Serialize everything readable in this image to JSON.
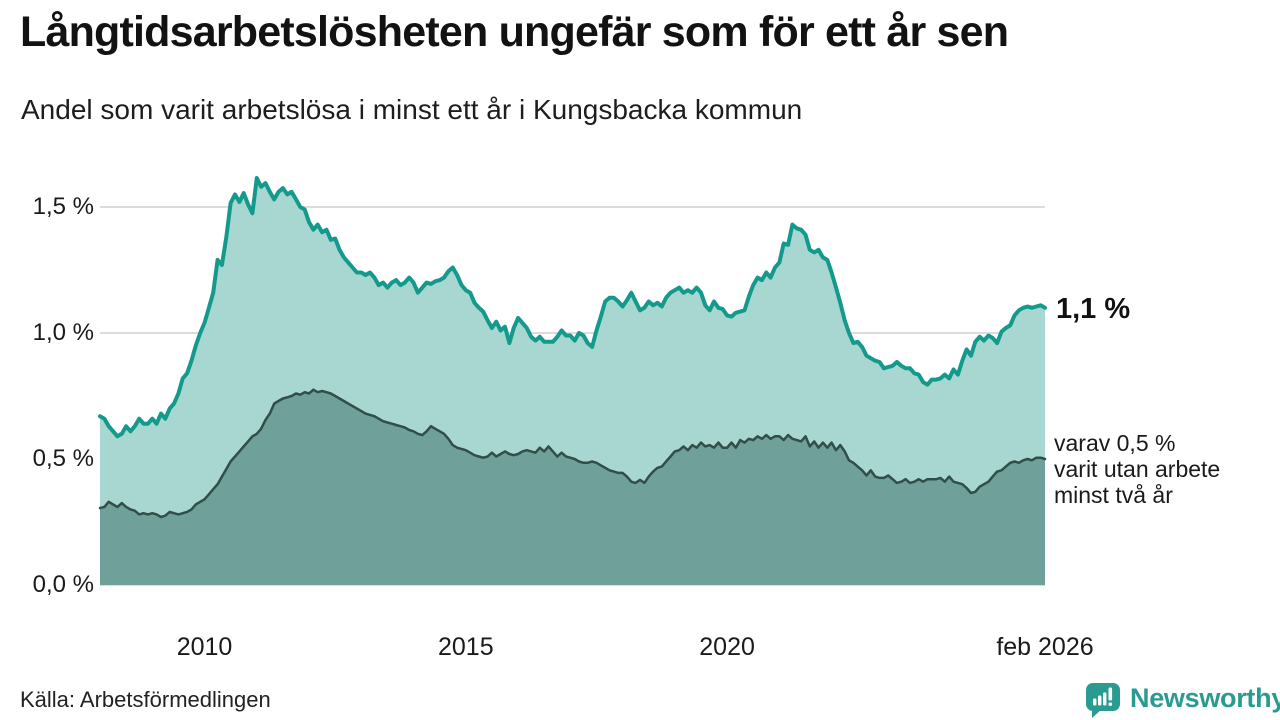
{
  "chart_data": {
    "type": "area",
    "title": "Långtidsarbetslösheten ungefär som för ett år sen",
    "subtitle": "Andel som varit arbetslösa i minst ett år i Kungsbacka kommun",
    "x_start": 2008.0,
    "x_step_months": 1,
    "ylim": [
      0,
      1.65
    ],
    "grid": "on",
    "grid_color": "#dcdcdc",
    "y_ticks": [
      {
        "v": 0.0,
        "label": "0,0 %"
      },
      {
        "v": 0.5,
        "label": "0,5 %"
      },
      {
        "v": 1.0,
        "label": "1,0 %"
      },
      {
        "v": 1.5,
        "label": "1,5 %"
      }
    ],
    "x_ticks": [
      {
        "t": 2010.0,
        "label": "2010"
      },
      {
        "t": 2015.0,
        "label": "2015"
      },
      {
        "t": 2020.0,
        "label": "2020"
      },
      {
        "t": 2026.0833,
        "label": "feb 2026"
      }
    ],
    "annotations": {
      "latest_value": "1,1 %",
      "secondary": "varav 0,5 %\nvarit utan arbete\nminst två år"
    },
    "series": [
      {
        "name": "arbetslösa minst ett år",
        "line_color": "#149a8d",
        "fill_color": "#a7d7d0",
        "line_width": 4,
        "values": [
          0.67,
          0.66,
          0.63,
          0.61,
          0.59,
          0.6,
          0.63,
          0.61,
          0.63,
          0.66,
          0.64,
          0.64,
          0.66,
          0.64,
          0.68,
          0.66,
          0.7,
          0.72,
          0.76,
          0.82,
          0.84,
          0.89,
          0.95,
          1.0,
          1.04,
          1.1,
          1.16,
          1.29,
          1.27,
          1.38,
          1.515,
          1.55,
          1.52,
          1.555,
          1.51,
          1.475,
          1.615,
          1.58,
          1.595,
          1.56,
          1.53,
          1.56,
          1.575,
          1.55,
          1.56,
          1.53,
          1.5,
          1.49,
          1.44,
          1.41,
          1.43,
          1.4,
          1.41,
          1.37,
          1.375,
          1.33,
          1.3,
          1.28,
          1.26,
          1.24,
          1.24,
          1.23,
          1.24,
          1.22,
          1.19,
          1.2,
          1.18,
          1.2,
          1.21,
          1.19,
          1.2,
          1.22,
          1.2,
          1.16,
          1.18,
          1.2,
          1.195,
          1.205,
          1.21,
          1.22,
          1.245,
          1.26,
          1.23,
          1.19,
          1.17,
          1.16,
          1.12,
          1.1,
          1.085,
          1.05,
          1.02,
          1.045,
          1.01,
          1.025,
          0.96,
          1.02,
          1.06,
          1.04,
          1.02,
          0.985,
          0.97,
          0.985,
          0.965,
          0.965,
          0.965,
          0.985,
          1.01,
          0.99,
          0.99,
          0.97,
          1.0,
          0.99,
          0.96,
          0.945,
          1.01,
          1.065,
          1.125,
          1.14,
          1.14,
          1.125,
          1.105,
          1.13,
          1.16,
          1.125,
          1.09,
          1.1,
          1.125,
          1.11,
          1.12,
          1.105,
          1.14,
          1.16,
          1.17,
          1.18,
          1.16,
          1.17,
          1.16,
          1.18,
          1.16,
          1.11,
          1.09,
          1.125,
          1.1,
          1.095,
          1.07,
          1.065,
          1.08,
          1.085,
          1.09,
          1.145,
          1.19,
          1.22,
          1.21,
          1.24,
          1.22,
          1.26,
          1.28,
          1.355,
          1.35,
          1.43,
          1.415,
          1.41,
          1.39,
          1.33,
          1.32,
          1.33,
          1.3,
          1.29,
          1.24,
          1.18,
          1.12,
          1.05,
          1.0,
          0.96,
          0.965,
          0.945,
          0.91,
          0.9,
          0.89,
          0.885,
          0.86,
          0.865,
          0.87,
          0.885,
          0.87,
          0.86,
          0.86,
          0.84,
          0.835,
          0.805,
          0.795,
          0.815,
          0.815,
          0.82,
          0.835,
          0.82,
          0.855,
          0.835,
          0.89,
          0.935,
          0.91,
          0.965,
          0.985,
          0.97,
          0.99,
          0.98,
          0.96,
          1.005,
          1.02,
          1.03,
          1.07,
          1.09,
          1.1,
          1.105,
          1.1,
          1.105,
          1.11,
          1.1
        ]
      },
      {
        "name": "varav utan arbete minst två år",
        "line_color": "#324e49",
        "fill_color": "#6fa09a",
        "line_width": 2.5,
        "values": [
          0.305,
          0.31,
          0.33,
          0.32,
          0.31,
          0.325,
          0.31,
          0.3,
          0.295,
          0.28,
          0.285,
          0.28,
          0.285,
          0.28,
          0.27,
          0.275,
          0.29,
          0.285,
          0.28,
          0.285,
          0.29,
          0.3,
          0.32,
          0.33,
          0.34,
          0.36,
          0.38,
          0.4,
          0.43,
          0.46,
          0.49,
          0.51,
          0.53,
          0.55,
          0.57,
          0.59,
          0.6,
          0.62,
          0.655,
          0.68,
          0.72,
          0.73,
          0.74,
          0.745,
          0.75,
          0.76,
          0.755,
          0.765,
          0.76,
          0.775,
          0.765,
          0.77,
          0.765,
          0.76,
          0.75,
          0.74,
          0.73,
          0.72,
          0.71,
          0.7,
          0.69,
          0.68,
          0.675,
          0.67,
          0.66,
          0.65,
          0.645,
          0.64,
          0.635,
          0.63,
          0.625,
          0.615,
          0.61,
          0.6,
          0.595,
          0.61,
          0.63,
          0.62,
          0.61,
          0.6,
          0.58,
          0.555,
          0.545,
          0.54,
          0.535,
          0.525,
          0.515,
          0.51,
          0.505,
          0.51,
          0.525,
          0.51,
          0.52,
          0.53,
          0.52,
          0.515,
          0.52,
          0.53,
          0.535,
          0.53,
          0.525,
          0.545,
          0.53,
          0.55,
          0.53,
          0.51,
          0.525,
          0.51,
          0.505,
          0.5,
          0.49,
          0.485,
          0.485,
          0.49,
          0.485,
          0.475,
          0.465,
          0.455,
          0.45,
          0.445,
          0.445,
          0.43,
          0.41,
          0.405,
          0.417,
          0.405,
          0.43,
          0.45,
          0.465,
          0.47,
          0.49,
          0.51,
          0.53,
          0.535,
          0.55,
          0.535,
          0.555,
          0.545,
          0.565,
          0.55,
          0.555,
          0.545,
          0.565,
          0.545,
          0.545,
          0.565,
          0.545,
          0.575,
          0.565,
          0.58,
          0.575,
          0.59,
          0.58,
          0.595,
          0.58,
          0.59,
          0.59,
          0.575,
          0.595,
          0.58,
          0.575,
          0.57,
          0.59,
          0.55,
          0.57,
          0.545,
          0.565,
          0.545,
          0.565,
          0.535,
          0.555,
          0.53,
          0.495,
          0.485,
          0.47,
          0.455,
          0.435,
          0.455,
          0.43,
          0.425,
          0.425,
          0.435,
          0.42,
          0.405,
          0.41,
          0.42,
          0.405,
          0.41,
          0.42,
          0.41,
          0.42,
          0.42,
          0.42,
          0.425,
          0.41,
          0.43,
          0.41,
          0.405,
          0.4,
          0.385,
          0.365,
          0.37,
          0.39,
          0.4,
          0.41,
          0.43,
          0.45,
          0.455,
          0.47,
          0.485,
          0.49,
          0.485,
          0.495,
          0.5,
          0.495,
          0.505,
          0.505,
          0.5
        ]
      }
    ]
  },
  "footer": {
    "source": "Källa: Arbetsförmedlingen",
    "brand": "Newsworthy",
    "brand_color": "#2a9b90"
  }
}
